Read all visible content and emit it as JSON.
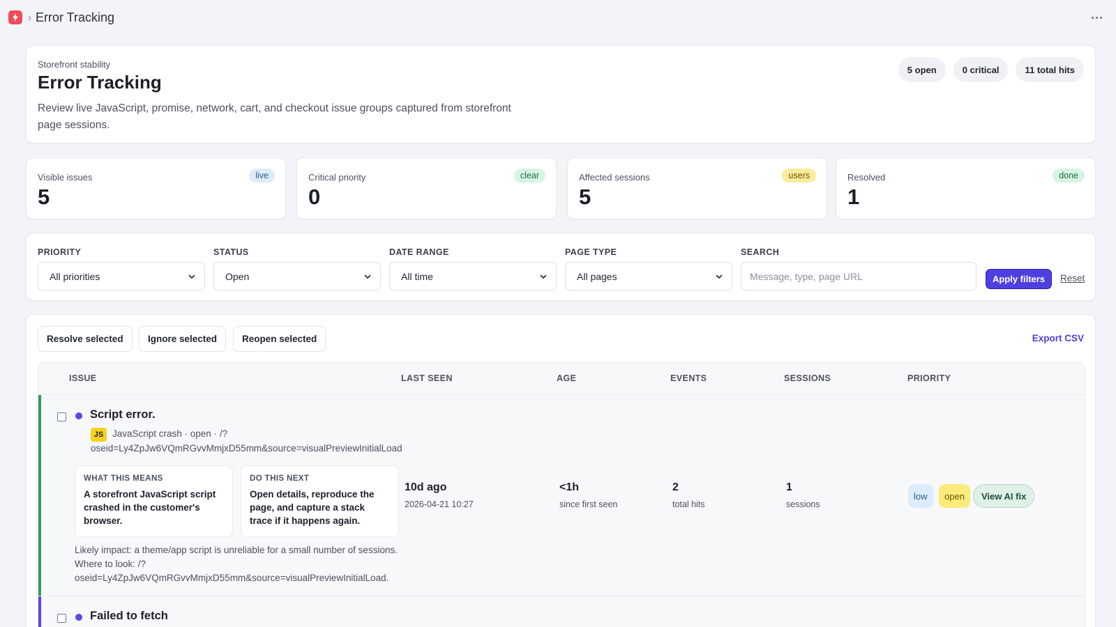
{
  "topbar": {
    "title": "Error Tracking",
    "app_icon": "lightning-icon",
    "menu_icon": "more-horizontal-icon"
  },
  "header": {
    "eyebrow": "Storefront stability",
    "title": "Error Tracking",
    "description": "Review live JavaScript, promise, network, cart, and checkout issue groups captured from storefront page sessions.",
    "pills": [
      "5 open",
      "0 critical",
      "11 total hits"
    ]
  },
  "stats": [
    {
      "label": "Visible issues",
      "value": "5",
      "tag": "live",
      "tag_bg": "#dcecfb",
      "tag_color": "#2e5c8a"
    },
    {
      "label": "Critical priority",
      "value": "0",
      "tag": "clear",
      "tag_bg": "#d6f5e3",
      "tag_color": "#1f6b40"
    },
    {
      "label": "Affected sessions",
      "value": "5",
      "tag": "users",
      "tag_bg": "#fbeb9a",
      "tag_color": "#6b5500"
    },
    {
      "label": "Resolved",
      "value": "1",
      "tag": "done",
      "tag_bg": "#d6f5e3",
      "tag_color": "#1f6b40"
    }
  ],
  "filters": {
    "priority": {
      "label": "PRIORITY",
      "value": "All priorities"
    },
    "status": {
      "label": "STATUS",
      "value": "Open"
    },
    "date_range": {
      "label": "DATE RANGE",
      "value": "All time"
    },
    "page_type": {
      "label": "PAGE TYPE",
      "value": "All pages"
    },
    "search": {
      "label": "SEARCH",
      "placeholder": "Message, type, page URL",
      "value": ""
    },
    "apply_label": "Apply filters",
    "reset_label": "Reset"
  },
  "bulk": {
    "resolve_label": "Resolve selected",
    "ignore_label": "Ignore selected",
    "reopen_label": "Reopen selected",
    "export_label": "Export CSV"
  },
  "table": {
    "columns": [
      "ISSUE",
      "LAST SEEN",
      "AGE",
      "EVENTS",
      "SESSIONS",
      "PRIORITY"
    ],
    "rows": [
      {
        "title": "Script error.",
        "badge": "JS",
        "meta": "JavaScript crash · open · /?",
        "meta2": "oseid=Ly4ZpJw6VQmRGvvMmjxD55mm&source=visualPreviewInitialLoad",
        "what_head": "WHAT THIS MEANS",
        "what_body": "A storefront JavaScript script crashed in the customer's browser.",
        "next_head": "DO THIS NEXT",
        "next_body": "Open details, reproduce the page, and capture a stack trace if it happens again.",
        "last_seen": "10d ago",
        "last_seen_ts": "2026-04-21 10:27",
        "age": "<1h",
        "age_sub": "since first seen",
        "events": "2",
        "events_sub": "total hits",
        "sessions": "1",
        "sessions_sub": "sessions",
        "priority": "low",
        "status": "open",
        "ai_fix": "View AI fix",
        "impact": "Likely impact: a theme/app script is unreliable for a small number of sessions. Where to look: /?oseid=Ly4ZpJw6VQmRGvvMmjxD55mm&source=visualPreviewInitialLoad.",
        "bar_color": "#2f9e5b"
      },
      {
        "title": "Failed to fetch",
        "bar_color": "#5a47e6"
      }
    ]
  }
}
